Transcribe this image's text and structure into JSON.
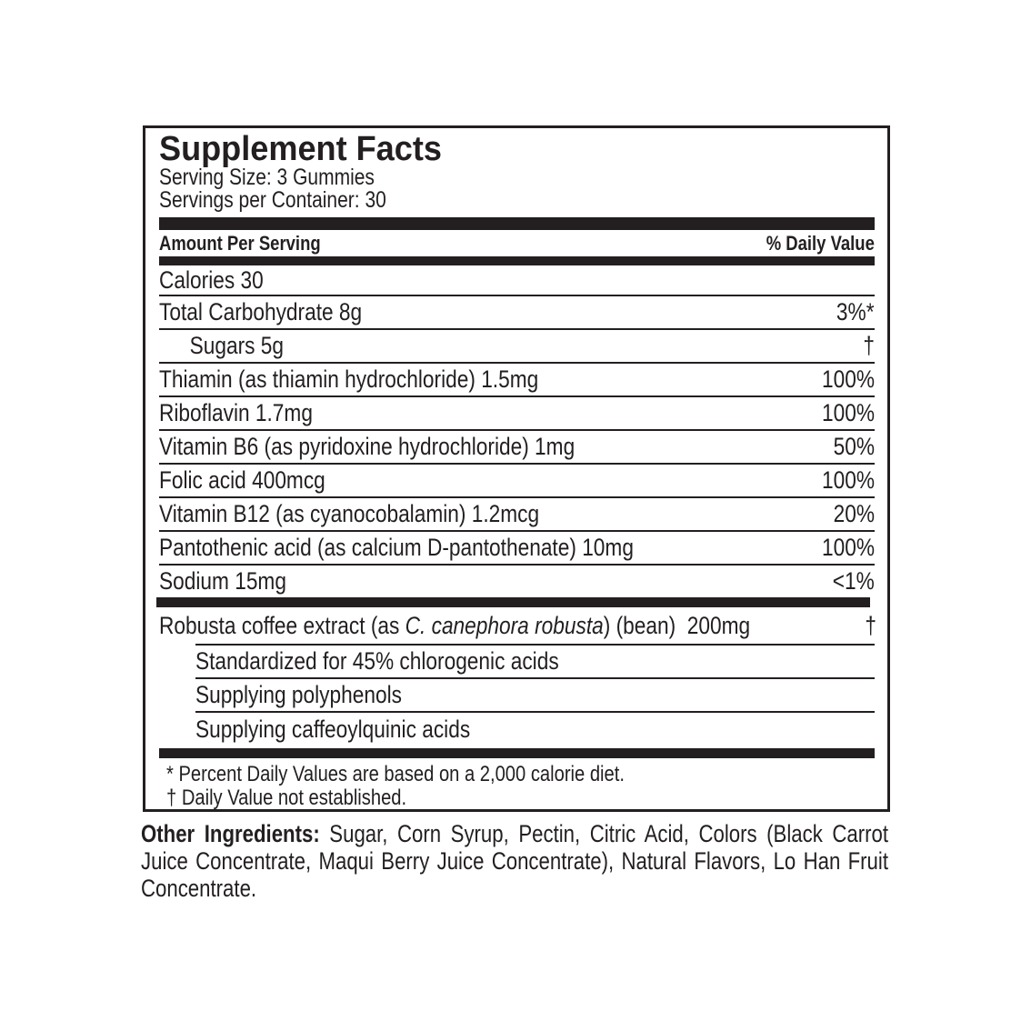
{
  "label": {
    "title": "Supplement Facts",
    "serving_size": "Serving Size: 3 Gummies",
    "servings_per_container": "Servings per Container: 30",
    "header_left": "Amount Per Serving",
    "header_right": "% Daily Value",
    "calories": "Calories 30",
    "nutrients": [
      {
        "name": "Total Carbohydrate 8g",
        "dv": "3%*"
      },
      {
        "name": "Sugars 5g",
        "dv": "†"
      },
      {
        "name": "Thiamin (as thiamin hydrochloride) 1.5mg",
        "dv": "100%"
      },
      {
        "name": "Riboflavin 1.7mg",
        "dv": "100%"
      },
      {
        "name": "Vitamin B6 (as pyridoxine hydrochloride) 1mg",
        "dv": "50%"
      },
      {
        "name": "Folic acid 400mcg",
        "dv": "100%"
      },
      {
        "name": "Vitamin B12 (as cyanocobalamin) 1.2mcg",
        "dv": "20%"
      },
      {
        "name": "Pantothenic acid (as calcium D-pantothenate) 10mg",
        "dv": "100%"
      },
      {
        "name": "Sodium 15mg",
        "dv": "<1%"
      }
    ],
    "robusta": {
      "prefix": "Robusta coffee extract (as ",
      "italic": "C. canephora robusta",
      "suffix": ") (bean)",
      "amount": "200mg",
      "dv": "†"
    },
    "sub_items": [
      "Standardized for 45% chlorogenic acids",
      "Supplying polyphenols",
      "Supplying caffeoylquinic acids"
    ],
    "footnotes": [
      "* Percent Daily Values are based on a 2,000 calorie diet.",
      "† Daily Value not established."
    ]
  },
  "other_ingredients": {
    "label": "Other Ingredients:",
    "text": " Sugar, Corn Syrup, Pectin, Citric Acid, Colors (Black Carrot Juice Concentrate, Maqui Berry Juice Concentrate), Natural Flavors, Lo Han Fruit Concentrate."
  }
}
